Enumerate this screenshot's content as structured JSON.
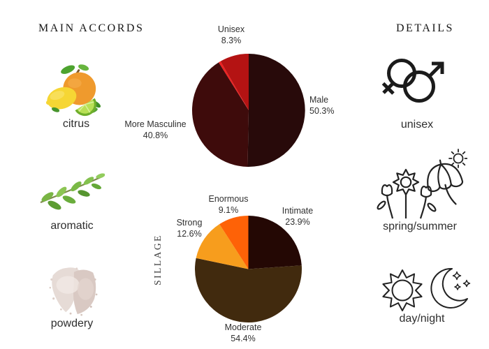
{
  "page": {
    "background": "#ffffff",
    "text_color": "#2b2b2b"
  },
  "left": {
    "title": "MAIN ACCORDS",
    "accords": [
      {
        "label": "citrus",
        "image": "citrus-fruits-photo"
      },
      {
        "label": "aromatic",
        "image": "herb-sprig-photo"
      },
      {
        "label": "powdery",
        "image": "powder-smear-photo"
      }
    ]
  },
  "right": {
    "title": "DETAILS",
    "details": [
      {
        "label": "unisex",
        "icon": "female-male-gender-icon"
      },
      {
        "label": "spring/summer",
        "icon": "flowers-umbrella-sun-icon"
      },
      {
        "label": "day/night",
        "icon": "sun-moon-stars-icon"
      }
    ]
  },
  "chart_data": [
    {
      "type": "pie",
      "name": "gender-votes",
      "start_angle_deg": 0,
      "direction": "clockwise",
      "legend_position": "outside-labels",
      "slices": [
        {
          "label": "Male",
          "value": 50.3,
          "pct_label": "50.3%",
          "color": "#280a0a"
        },
        {
          "label": "More Masculine",
          "value": 40.8,
          "pct_label": "40.8%",
          "color": "#3e0b0b"
        },
        {
          "label": "",
          "value": 0.6,
          "pct_label": "",
          "color": "#ee2020"
        },
        {
          "label": "Unisex",
          "value": 8.3,
          "pct_label": "8.3%",
          "color": "#b41313"
        }
      ]
    },
    {
      "type": "pie",
      "name": "sillage",
      "axis_label": "SILLAGE",
      "start_angle_deg": 0,
      "direction": "clockwise",
      "legend_position": "outside-labels",
      "slices": [
        {
          "label": "Intimate",
          "value": 23.9,
          "pct_label": "23.9%",
          "color": "#240804"
        },
        {
          "label": "Moderate",
          "value": 54.4,
          "pct_label": "54.4%",
          "color": "#412a0e"
        },
        {
          "label": "Strong",
          "value": 12.6,
          "pct_label": "12.6%",
          "color": "#f79d1d"
        },
        {
          "label": "Enormous",
          "value": 9.1,
          "pct_label": "9.1%",
          "color": "#fe6207"
        }
      ]
    }
  ]
}
